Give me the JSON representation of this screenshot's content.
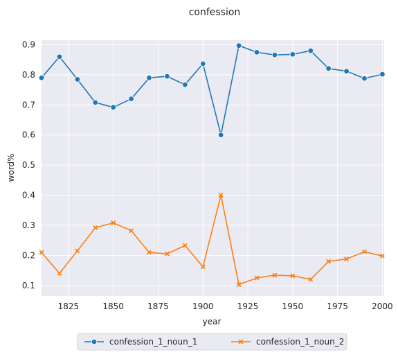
{
  "chart_data": {
    "type": "line",
    "title": "confession",
    "xlabel": "year",
    "ylabel": "word%",
    "xlim": [
      1810,
      2001
    ],
    "ylim": [
      0.065,
      0.915
    ],
    "xticks": [
      1825,
      1850,
      1875,
      1900,
      1925,
      1950,
      1975,
      2000
    ],
    "yticks": [
      0.1,
      0.2,
      0.3,
      0.4,
      0.5,
      0.6,
      0.7,
      0.8,
      0.9
    ],
    "grid": true,
    "legend_position": "bottom-center",
    "x": [
      1810,
      1820,
      1830,
      1840,
      1850,
      1860,
      1870,
      1880,
      1890,
      1900,
      1910,
      1920,
      1930,
      1940,
      1950,
      1960,
      1970,
      1980,
      1990,
      2000
    ],
    "series": [
      {
        "name": "confession_1_noun_1",
        "color": "#1f77b4",
        "marker": "circle",
        "values": [
          0.79,
          0.86,
          0.785,
          0.708,
          0.692,
          0.72,
          0.79,
          0.795,
          0.767,
          0.837,
          0.6,
          0.897,
          0.875,
          0.866,
          0.868,
          0.88,
          0.821,
          0.812,
          0.788,
          0.802
        ]
      },
      {
        "name": "confession_1_noun_2",
        "color": "#ff7f0e",
        "marker": "x",
        "values": [
          0.21,
          0.14,
          0.215,
          0.292,
          0.308,
          0.282,
          0.21,
          0.205,
          0.233,
          0.162,
          0.4,
          0.103,
          0.125,
          0.134,
          0.132,
          0.12,
          0.18,
          0.188,
          0.212,
          0.198
        ]
      }
    ]
  }
}
